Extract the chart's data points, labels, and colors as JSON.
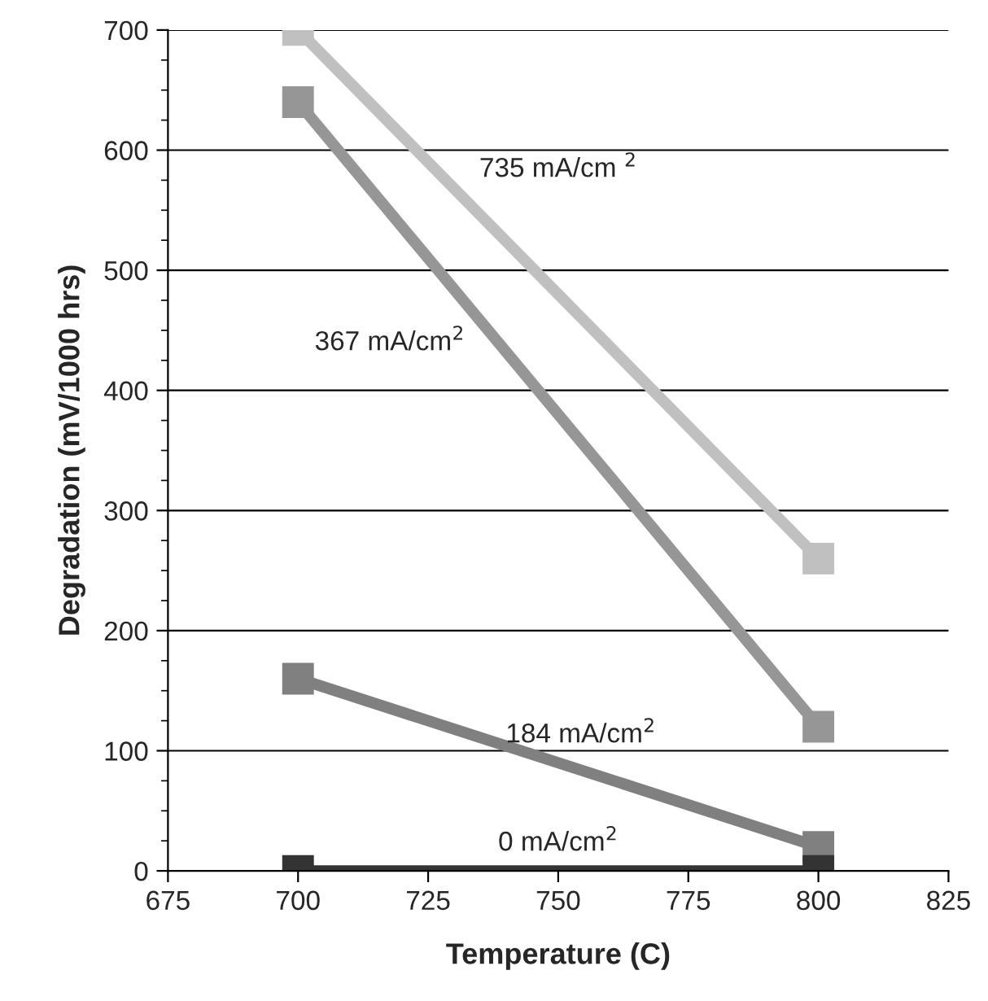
{
  "chart_data": {
    "type": "line",
    "xlabel": "Temperature (C)",
    "ylabel": "Degradation (mV/1000 hrs)",
    "x": [
      700,
      800
    ],
    "series": [
      {
        "name": "735 mA/cm $^{2}$",
        "color": "#c0c0c0",
        "values": [
          700,
          260
        ]
      },
      {
        "name": "367 mA/cm$^{2}$",
        "color": "#969696",
        "values": [
          640,
          120
        ]
      },
      {
        "name": "184 mA/cm$^{2}$",
        "color": "#808080",
        "values": [
          160,
          20
        ]
      },
      {
        "name": "0 mA/cm$^{2}$",
        "color": "#333333",
        "values": [
          0,
          0
        ]
      }
    ],
    "xlim": [
      675,
      825
    ],
    "xticks": [
      675,
      700,
      725,
      750,
      775,
      800,
      825
    ],
    "ylim": [
      0,
      700
    ],
    "yticks": [
      0,
      100,
      200,
      300,
      400,
      500,
      600,
      700
    ],
    "grid": "y",
    "marker": "square",
    "line_style": "solid",
    "legend": false
  }
}
